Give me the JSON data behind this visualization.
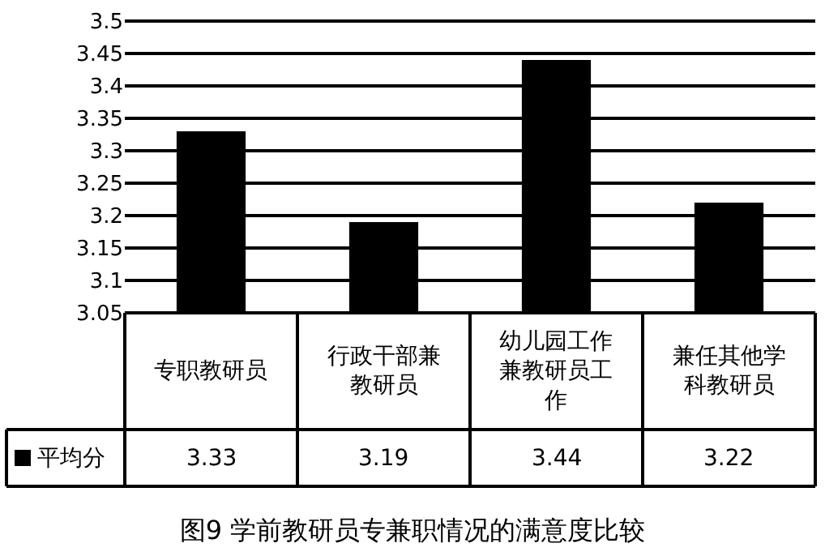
{
  "chart_data": {
    "type": "bar",
    "title": "图9 学前教研员专兼职情况的满意度比较",
    "categories": [
      "专职教研员",
      "行政干部兼教研员",
      "幼儿园工作兼教研员工作",
      "兼任其他学科教研员"
    ],
    "series": [
      {
        "name": "平均分",
        "color": "#000000",
        "values": [
          3.33,
          3.19,
          3.44,
          3.22
        ]
      }
    ],
    "ylim": [
      3.05,
      3.5
    ],
    "yticks": [
      3.05,
      3.1,
      3.15,
      3.2,
      3.25,
      3.3,
      3.35,
      3.4,
      3.45,
      3.5
    ],
    "grid": "y",
    "data_labels": true,
    "legend": "bottom left"
  }
}
